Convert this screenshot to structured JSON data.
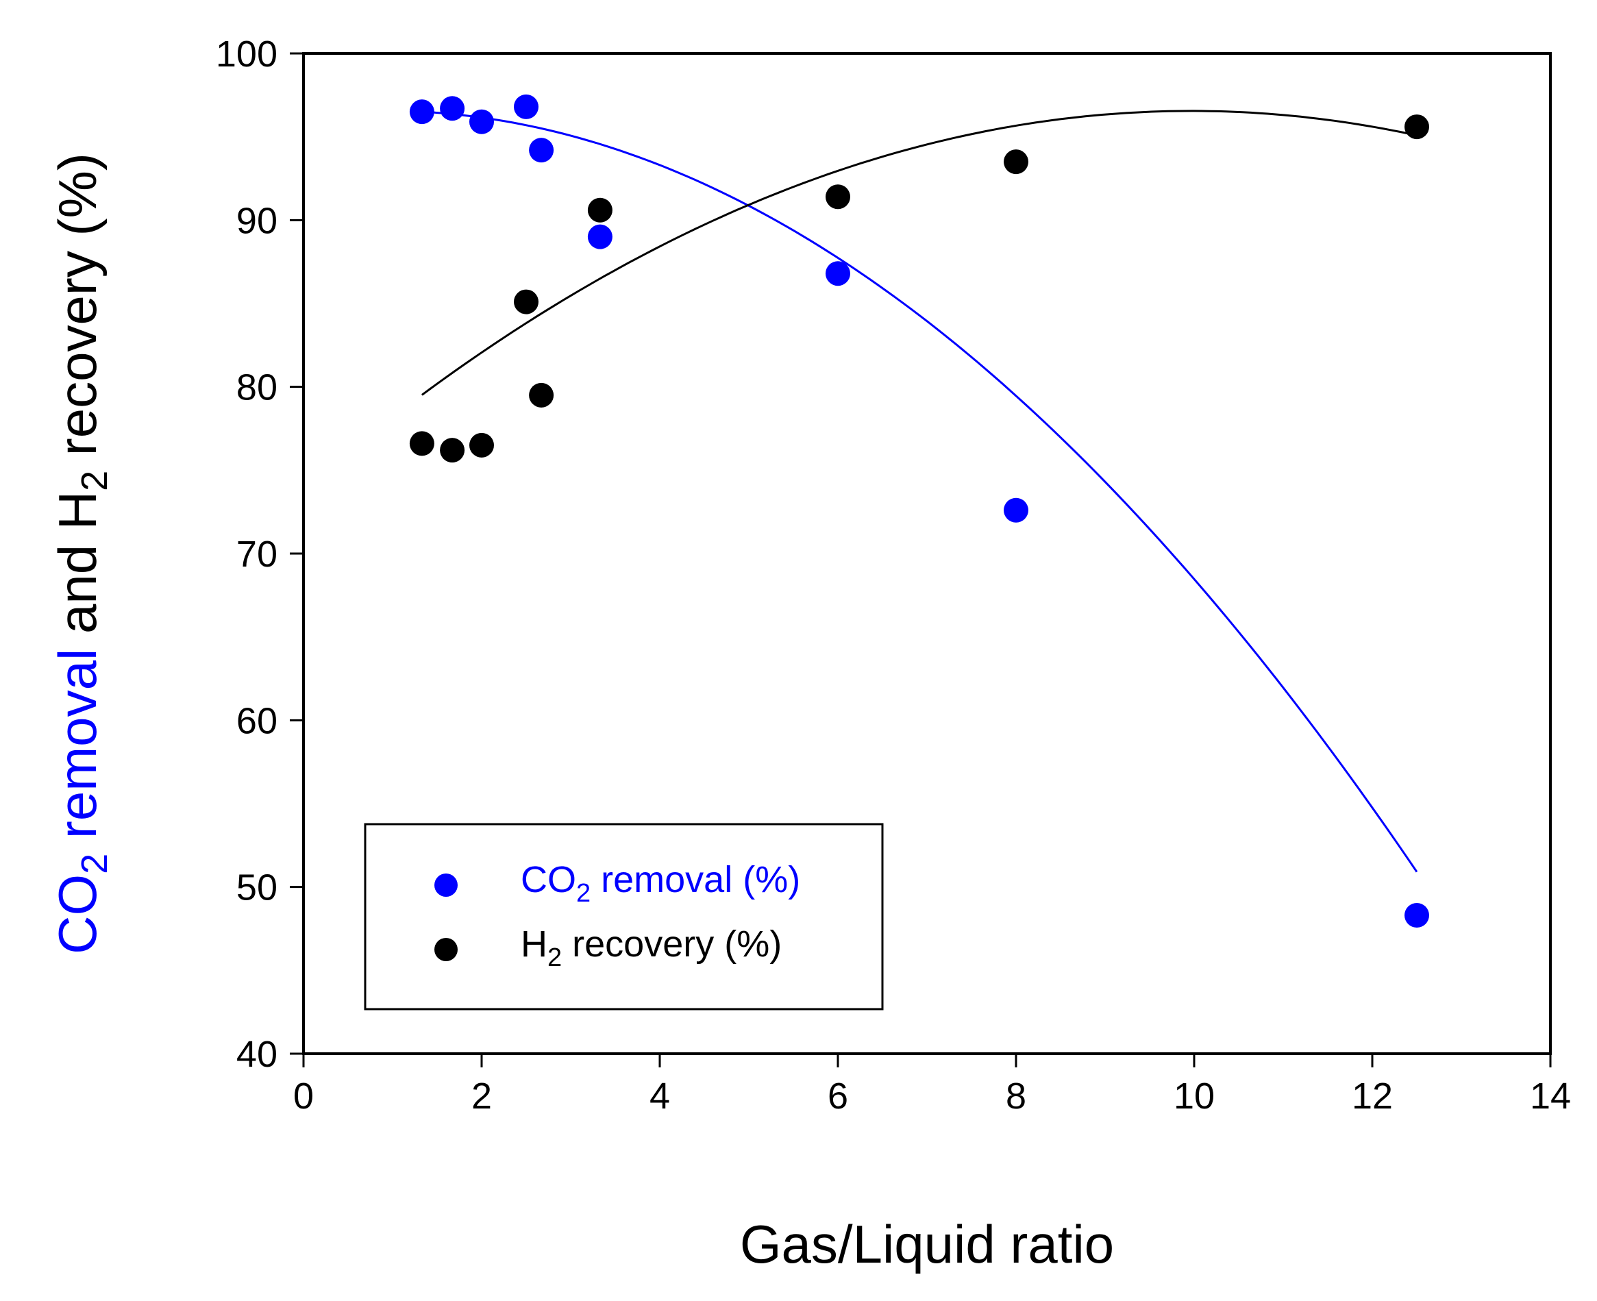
{
  "chart_data": {
    "type": "scatter",
    "xlabel": "Gas/Liquid ratio",
    "ylabel": {
      "co2_part1": "CO",
      "co2_sub": "2",
      "co2_part2": " removal",
      "mid": " and H",
      "h2_sub": "2",
      "end": " recovery (%)"
    },
    "xlim": [
      0,
      14
    ],
    "ylim": [
      40,
      100
    ],
    "xticks": [
      "0",
      "2",
      "4",
      "6",
      "8",
      "10",
      "12",
      "14"
    ],
    "yticks": [
      "40",
      "50",
      "60",
      "70",
      "80",
      "90",
      "100"
    ],
    "series": [
      {
        "name": "CO2 removal (%)",
        "legend": {
          "prefix": "CO",
          "sub": "2",
          "suffix": " removal (%)"
        },
        "color": "#0000ff",
        "x": [
          1.33,
          1.67,
          2.0,
          2.5,
          2.67,
          3.33,
          6.0,
          8.0,
          12.5
        ],
        "y": [
          96.5,
          96.7,
          95.9,
          96.8,
          94.2,
          89.0,
          86.8,
          72.6,
          48.3
        ],
        "fit": [
          -0.3393,
          0.6107,
          96.29
        ]
      },
      {
        "name": "H2 recovery (%)",
        "legend": {
          "prefix": "H",
          "sub": "2",
          "suffix": " recovery (%)"
        },
        "color": "#000000",
        "x": [
          1.33,
          1.67,
          2.0,
          2.5,
          2.67,
          3.33,
          6.0,
          8.0,
          12.5
        ],
        "y": [
          76.6,
          76.2,
          76.5,
          85.1,
          79.5,
          90.6,
          91.4,
          93.5,
          95.6
        ],
        "fit": [
          -0.2283,
          4.551,
          73.87
        ]
      }
    ],
    "legend_position": "bottom-left"
  }
}
